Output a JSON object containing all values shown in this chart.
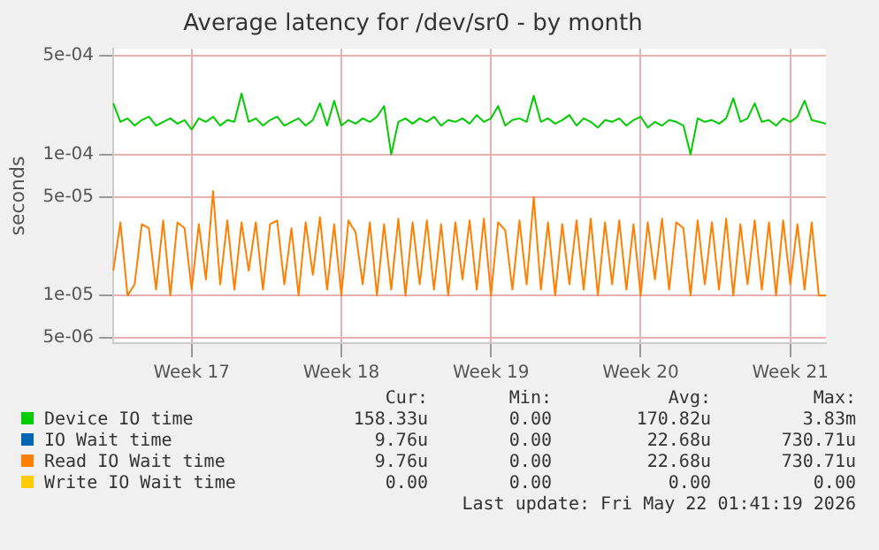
{
  "chart_data": {
    "type": "line",
    "title": "Average latency for /dev/sr0 - by month",
    "ylabel": "seconds",
    "log": "y",
    "grid": true,
    "legend": "bottom",
    "marker": "none",
    "line_style": "solid",
    "ylim": [
      4.6e-06,
      0.00056
    ],
    "yticks": [
      {
        "value": 5e-06,
        "label": "5e-06"
      },
      {
        "value": 1e-05,
        "label": "1e-05"
      },
      {
        "value": 5e-05,
        "label": "5e-05"
      },
      {
        "value": 0.0001,
        "label": "1e-04"
      },
      {
        "value": 0.0005,
        "label": "5e-04"
      }
    ],
    "categories": [
      null,
      null,
      null,
      null,
      null,
      null,
      null,
      null,
      null,
      null,
      null,
      "Week 17",
      null,
      null,
      null,
      null,
      null,
      null,
      null,
      null,
      null,
      null,
      null,
      null,
      null,
      null,
      null,
      null,
      null,
      null,
      null,
      null,
      "Week 18",
      null,
      null,
      null,
      null,
      null,
      null,
      null,
      null,
      null,
      null,
      null,
      null,
      null,
      null,
      null,
      null,
      null,
      null,
      null,
      null,
      "Week 19",
      null,
      null,
      null,
      null,
      null,
      null,
      null,
      null,
      null,
      null,
      null,
      null,
      null,
      null,
      null,
      null,
      null,
      null,
      null,
      null,
      "Week 20",
      null,
      null,
      null,
      null,
      null,
      null,
      null,
      null,
      null,
      null,
      null,
      null,
      null,
      null,
      null,
      null,
      null,
      null,
      null,
      null,
      "Week 21",
      null,
      null,
      null,
      null,
      null
    ],
    "series": [
      {
        "name": "Device IO time",
        "color": "#00cc00",
        "values": [
          0.00023,
          0.00017,
          0.00018,
          0.00016,
          0.000175,
          0.000185,
          0.00016,
          0.00017,
          0.00018,
          0.000165,
          0.000175,
          0.00015,
          0.00018,
          0.00017,
          0.000185,
          0.00016,
          0.000175,
          0.00017,
          0.00027,
          0.00017,
          0.00018,
          0.00016,
          0.000175,
          0.000185,
          0.00016,
          0.00017,
          0.00018,
          0.00016,
          0.000175,
          0.00023,
          0.00016,
          0.00024,
          0.00016,
          0.000175,
          0.000165,
          0.00018,
          0.00017,
          0.000185,
          0.00022,
          0.0001,
          0.00017,
          0.00018,
          0.000165,
          0.00018,
          0.00017,
          0.000185,
          0.00016,
          0.000175,
          0.00017,
          0.00018,
          0.000165,
          0.00019,
          0.00017,
          0.00018,
          0.00022,
          0.00016,
          0.000175,
          0.00018,
          0.00017,
          0.00026,
          0.00017,
          0.00018,
          0.000165,
          0.000175,
          0.00019,
          0.00016,
          0.00018,
          0.00017,
          0.000155,
          0.000175,
          0.00017,
          0.00018,
          0.00016,
          0.000175,
          0.000185,
          0.000155,
          0.00017,
          0.00016,
          0.000175,
          0.00017,
          0.00016,
          0.0001,
          0.00018,
          0.00017,
          0.000175,
          0.000165,
          0.00018,
          0.00025,
          0.00017,
          0.00018,
          0.00023,
          0.00017,
          0.000175,
          0.00016,
          0.00018,
          0.00017,
          0.000185,
          0.00024,
          0.000175,
          0.00017,
          0.000165
        ]
      },
      {
        "name": "IO Wait time",
        "color": "#0066b3",
        "values": [
          null,
          null,
          null,
          null,
          null,
          null,
          null,
          null,
          null,
          null,
          null,
          null,
          null,
          null,
          null,
          null,
          null,
          null,
          null,
          null,
          null,
          null,
          null,
          null,
          null,
          null,
          null,
          null,
          null,
          null,
          null,
          null,
          null,
          null,
          null,
          null,
          null,
          null,
          null,
          null,
          null,
          null,
          null,
          null,
          null,
          null,
          null,
          null,
          null,
          null,
          null,
          null,
          null,
          null,
          null,
          null,
          null,
          null,
          null,
          null,
          null,
          null,
          null,
          null,
          null,
          null,
          null,
          null,
          null,
          null,
          null,
          null,
          null,
          null,
          null,
          null,
          null,
          null,
          null,
          null,
          null,
          null,
          null,
          null,
          null,
          null,
          null,
          null,
          null,
          null,
          null,
          null,
          null,
          null,
          null,
          null,
          null,
          null,
          null,
          null,
          null
        ]
      },
      {
        "name": "Read IO Wait time",
        "color": "#ff8000",
        "values": [
          1.5e-05,
          3.3e-05,
          1e-05,
          1.2e-05,
          3.2e-05,
          3e-05,
          1.1e-05,
          3.4e-05,
          1e-05,
          3.3e-05,
          3e-05,
          1.1e-05,
          3.2e-05,
          1.3e-05,
          5.5e-05,
          1.2e-05,
          3.4e-05,
          1.1e-05,
          3.3e-05,
          1.5e-05,
          3.3e-05,
          1.1e-05,
          3.2e-05,
          3.4e-05,
          1.2e-05,
          3e-05,
          1e-05,
          3.3e-05,
          1.4e-05,
          3.6e-05,
          1.1e-05,
          3.2e-05,
          1e-05,
          3.4e-05,
          2.8e-05,
          1.2e-05,
          3.3e-05,
          1e-05,
          3.2e-05,
          1.1e-05,
          3.5e-05,
          1e-05,
          3.3e-05,
          1.2e-05,
          3.4e-05,
          1.1e-05,
          3.2e-05,
          1e-05,
          3.3e-05,
          1.3e-05,
          3.4e-05,
          1.1e-05,
          3.5e-05,
          1e-05,
          3.3e-05,
          2.9e-05,
          1.1e-05,
          3.4e-05,
          1.2e-05,
          5e-05,
          1.1e-05,
          3.3e-05,
          1e-05,
          3.2e-05,
          1.2e-05,
          3.4e-05,
          1.1e-05,
          3.5e-05,
          1e-05,
          3.3e-05,
          1.2e-05,
          3.4e-05,
          1.1e-05,
          3.2e-05,
          1e-05,
          3.3e-05,
          1.3e-05,
          3.5e-05,
          1.1e-05,
          3.3e-05,
          3e-05,
          1e-05,
          3.4e-05,
          1.2e-05,
          3.3e-05,
          1.1e-05,
          3.5e-05,
          1e-05,
          3.2e-05,
          1.2e-05,
          3.4e-05,
          1.1e-05,
          3.3e-05,
          1e-05,
          3.4e-05,
          1.2e-05,
          3.2e-05,
          1.1e-05,
          3.3e-05,
          1e-05,
          1e-05
        ]
      },
      {
        "name": "Write IO Wait time",
        "color": "#ffcc00",
        "values": [
          null,
          null,
          null,
          null,
          null,
          null,
          null,
          null,
          null,
          null,
          null,
          null,
          null,
          null,
          null,
          null,
          null,
          null,
          null,
          null,
          null,
          null,
          null,
          null,
          null,
          null,
          null,
          null,
          null,
          null,
          null,
          null,
          null,
          null,
          null,
          null,
          null,
          null,
          null,
          null,
          null,
          null,
          null,
          null,
          null,
          null,
          null,
          null,
          null,
          null,
          null,
          null,
          null,
          null,
          null,
          null,
          null,
          null,
          null,
          null,
          null,
          null,
          null,
          null,
          null,
          null,
          null,
          null,
          null,
          null,
          null,
          null,
          null,
          null,
          null,
          null,
          null,
          null,
          null,
          null,
          null,
          null,
          null,
          null,
          null,
          null,
          null,
          null,
          null,
          null,
          null,
          null,
          null,
          null,
          null,
          null,
          null,
          null,
          null,
          null,
          null
        ]
      }
    ],
    "annotations": [
      "Cur:",
      "Min:",
      "Avg:",
      "Max:",
      "158.33u",
      "0.00",
      "170.82u",
      "3.83m",
      "9.76u",
      "0.00",
      "22.68u",
      "730.71u",
      "9.76u",
      "0.00",
      "22.68u",
      "730.71u",
      "0.00",
      "0.00",
      "0.00",
      "0.00",
      "Last update: Fri May 22 01:41:19 2026"
    ]
  }
}
